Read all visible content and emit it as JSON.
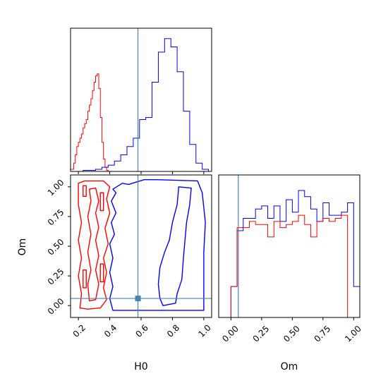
{
  "chart_data": {
    "type": "corner",
    "truth": {
      "H0": 0.58,
      "Om": 0.06
    },
    "colors": {
      "blue": "#0000ff",
      "red": "#ff0000",
      "truth": "#4682b4"
    },
    "panels": [
      {
        "id": "H0-hist",
        "type": "histogram",
        "xlim": [
          0.15,
          1.05
        ],
        "series": [
          {
            "color": "red",
            "edges": [
              0.15,
              0.17,
              0.18,
              0.19,
              0.2,
              0.21,
              0.22,
              0.23,
              0.24,
              0.25,
              0.26,
              0.27,
              0.28,
              0.29,
              0.3,
              0.31,
              0.32,
              0.33,
              0.34,
              0.35,
              0.36,
              0.37,
              0.38,
              0.39,
              0.4
            ],
            "counts": [
              2,
              8,
              16,
              24,
              28,
              32,
              36,
              42,
              46,
              50,
              58,
              64,
              70,
              78,
              86,
              92,
              94,
              80,
              52,
              28,
              12,
              4,
              1,
              0
            ]
          },
          {
            "color": "blue",
            "edges": [
              0.15,
              0.19,
              0.23,
              0.27,
              0.31,
              0.35,
              0.39,
              0.43,
              0.47,
              0.51,
              0.55,
              0.59,
              0.63,
              0.67,
              0.71,
              0.75,
              0.79,
              0.83,
              0.87,
              0.91,
              0.95,
              0.99,
              1.03
            ],
            "counts": [
              0,
              0,
              1,
              1,
              2,
              4,
              6,
              10,
              16,
              24,
              32,
              50,
              52,
              86,
              115,
              128,
              120,
              96,
              58,
              26,
              8,
              2
            ]
          }
        ],
        "ymax": 138
      },
      {
        "id": "H0-Om-contour",
        "type": "contour",
        "xlim": [
          0.15,
          1.05
        ],
        "ylim": [
          -0.1,
          1.1
        ],
        "xlabel": "H0",
        "ylabel": "Om",
        "xticks": [
          "0.2",
          "0.4",
          "0.6",
          "0.8",
          "1.0"
        ],
        "yticks": [
          "0.00",
          "0.25",
          "0.50",
          "0.75",
          "1.00"
        ],
        "series": [
          {
            "color": "blue",
            "contours": [
              [
                [
                  0.99,
                  0.95
                ],
                [
                  0.96,
                  1.05
                ],
                [
                  0.7,
                  1.06
                ],
                [
                  0.62,
                  1.06
                ],
                [
                  0.52,
                  1.02
                ],
                [
                  0.48,
                  1.03
                ],
                [
                  0.42,
                  0.98
                ],
                [
                  0.44,
                  0.95
                ],
                [
                  0.41,
                  0.88
                ],
                [
                  0.44,
                  0.78
                ],
                [
                  0.41,
                  0.7
                ],
                [
                  0.43,
                  0.6
                ],
                [
                  0.4,
                  0.52
                ],
                [
                  0.42,
                  0.4
                ],
                [
                  0.4,
                  0.28
                ],
                [
                  0.42,
                  0.16
                ],
                [
                  0.4,
                  0.06
                ],
                [
                  0.42,
                  -0.04
                ],
                [
                  0.6,
                  -0.04
                ],
                [
                  1.0,
                  -0.04
                ],
                [
                  1.0,
                  0.45
                ],
                [
                  1.01,
                  0.7
                ]
              ],
              [
                [
                  0.92,
                  0.99
                ],
                [
                  0.84,
                  1.0
                ],
                [
                  0.83,
                  0.85
                ],
                [
                  0.8,
                  0.7
                ],
                [
                  0.78,
                  0.55
                ],
                [
                  0.75,
                  0.45
                ],
                [
                  0.72,
                  0.32
                ],
                [
                  0.71,
                  0.18
                ],
                [
                  0.72,
                  0.06
                ],
                [
                  0.74,
                  0.0
                ],
                [
                  0.82,
                  0.02
                ],
                [
                  0.83,
                  0.1
                ],
                [
                  0.86,
                  0.22
                ],
                [
                  0.87,
                  0.4
                ],
                [
                  0.88,
                  0.55
                ],
                [
                  0.89,
                  0.7
                ],
                [
                  0.91,
                  0.85
                ]
              ]
            ]
          },
          {
            "color": "red",
            "contours": [
              [
                [
                  0.2,
                  1.03
                ],
                [
                  0.24,
                  1.05
                ],
                [
                  0.3,
                  1.05
                ],
                [
                  0.36,
                  1.05
                ],
                [
                  0.4,
                  1.0
                ],
                [
                  0.38,
                  0.9
                ],
                [
                  0.4,
                  0.78
                ],
                [
                  0.37,
                  0.65
                ],
                [
                  0.39,
                  0.52
                ],
                [
                  0.36,
                  0.4
                ],
                [
                  0.38,
                  0.28
                ],
                [
                  0.36,
                  0.15
                ],
                [
                  0.38,
                  0.05
                ],
                [
                  0.34,
                  -0.02
                ],
                [
                  0.26,
                  -0.03
                ],
                [
                  0.21,
                  -0.02
                ],
                [
                  0.22,
                  0.1
                ],
                [
                  0.2,
                  0.25
                ],
                [
                  0.22,
                  0.4
                ],
                [
                  0.2,
                  0.55
                ],
                [
                  0.22,
                  0.7
                ],
                [
                  0.2,
                  0.85
                ]
              ],
              [
                [
                  0.27,
                  0.98
                ],
                [
                  0.31,
                  0.99
                ],
                [
                  0.33,
                  0.88
                ],
                [
                  0.31,
                  0.78
                ],
                [
                  0.33,
                  0.66
                ],
                [
                  0.31,
                  0.55
                ],
                [
                  0.33,
                  0.42
                ],
                [
                  0.31,
                  0.3
                ],
                [
                  0.33,
                  0.18
                ],
                [
                  0.31,
                  0.05
                ],
                [
                  0.27,
                  0.04
                ],
                [
                  0.26,
                  0.18
                ],
                [
                  0.28,
                  0.3
                ],
                [
                  0.26,
                  0.45
                ],
                [
                  0.28,
                  0.6
                ],
                [
                  0.26,
                  0.75
                ],
                [
                  0.28,
                  0.88
                ]
              ],
              [
                [
                  0.23,
                  1.01
                ],
                [
                  0.25,
                  1.01
                ],
                [
                  0.25,
                  0.92
                ],
                [
                  0.23,
                  0.92
                ]
              ],
              [
                [
                  0.34,
                  0.95
                ],
                [
                  0.36,
                  0.95
                ],
                [
                  0.36,
                  0.8
                ],
                [
                  0.34,
                  0.8
                ]
              ],
              [
                [
                  0.23,
                  0.3
                ],
                [
                  0.25,
                  0.3
                ],
                [
                  0.25,
                  0.15
                ],
                [
                  0.23,
                  0.15
                ]
              ],
              [
                [
                  0.34,
                  0.35
                ],
                [
                  0.36,
                  0.35
                ],
                [
                  0.36,
                  0.2
                ],
                [
                  0.34,
                  0.2
                ]
              ]
            ]
          }
        ]
      },
      {
        "id": "Om-hist",
        "type": "histogram",
        "xlim": [
          -0.1,
          1.05
        ],
        "xlabel": "Om",
        "xticks": [
          "0.00",
          "0.25",
          "0.50",
          "0.75",
          "1.00"
        ],
        "series": [
          {
            "color": "blue",
            "edges": [
              -0.05,
              0.0,
              0.05,
              0.1,
              0.15,
              0.2,
              0.25,
              0.3,
              0.35,
              0.4,
              0.45,
              0.5,
              0.55,
              0.6,
              0.65,
              0.7,
              0.75,
              0.8,
              0.85,
              0.9,
              0.95,
              1.0,
              1.05
            ],
            "counts": [
              0,
              20,
              56,
              64,
              64,
              70,
              72,
              64,
              72,
              62,
              76,
              68,
              82,
              78,
              70,
              62,
              74,
              66,
              66,
              68,
              74,
              20
            ]
          },
          {
            "color": "red",
            "edges": [
              -0.05,
              0.0,
              0.05,
              0.1,
              0.15,
              0.2,
              0.25,
              0.3,
              0.35,
              0.4,
              0.45,
              0.5,
              0.55,
              0.6,
              0.65,
              0.7,
              0.75,
              0.8,
              0.85,
              0.9,
              0.95,
              1.0
            ],
            "counts": [
              0,
              20,
              58,
              58,
              62,
              60,
              60,
              52,
              62,
              58,
              60,
              62,
              66,
              60,
              52,
              62,
              64,
              62,
              64,
              66,
              0
            ]
          }
        ],
        "ymax": 92
      }
    ]
  }
}
